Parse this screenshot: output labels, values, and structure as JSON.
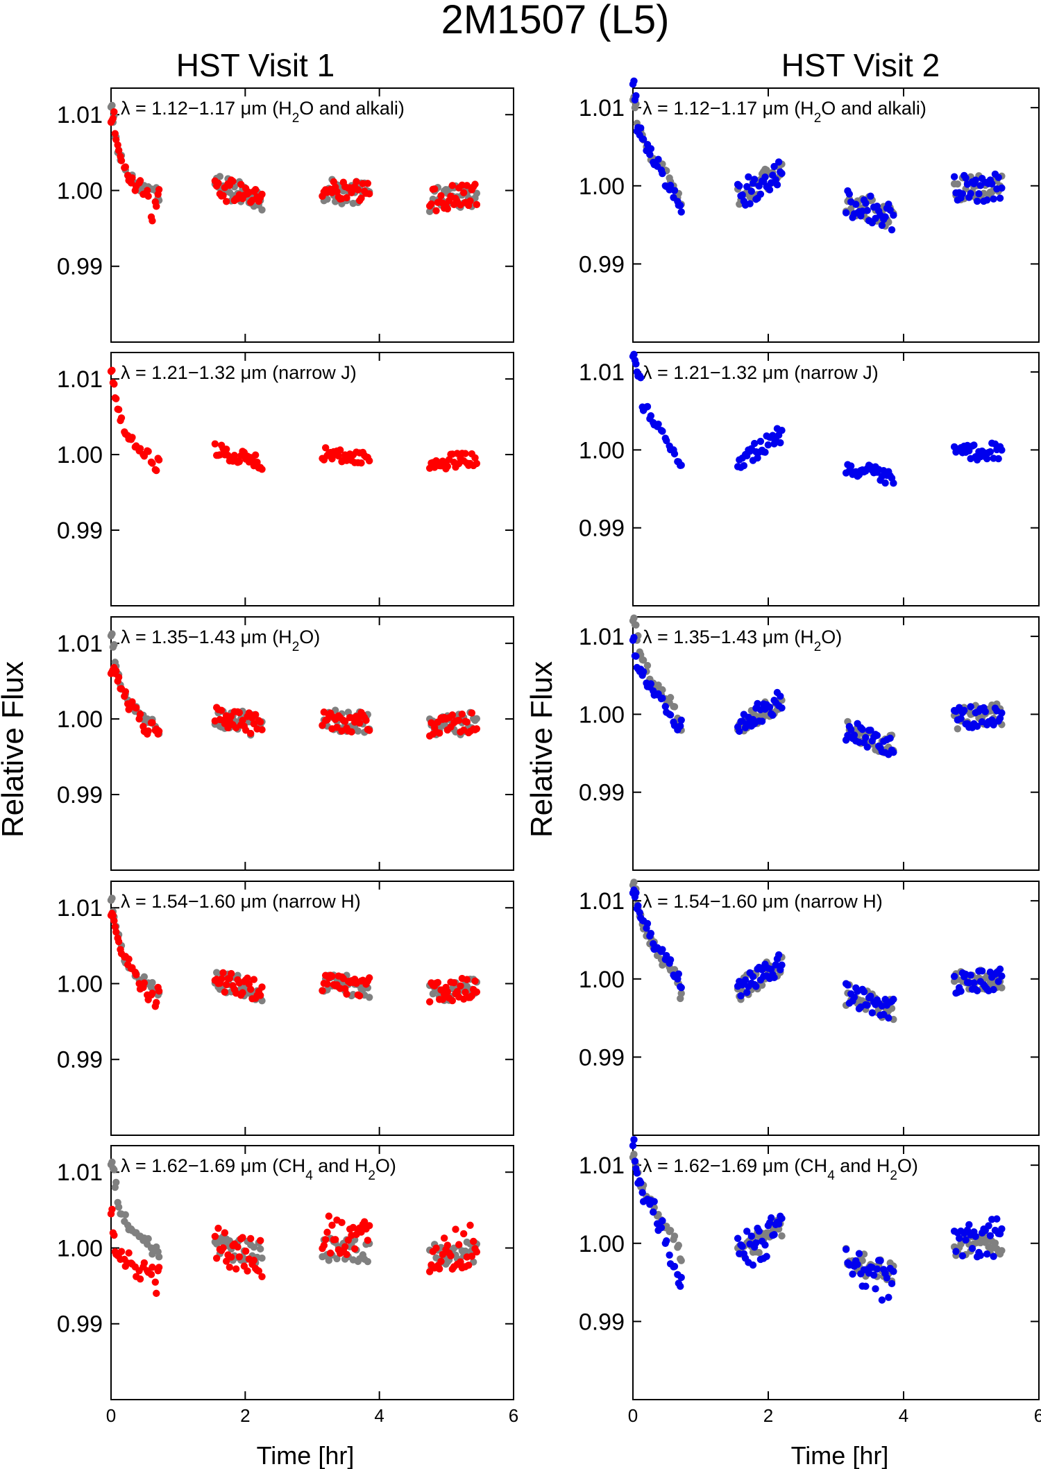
{
  "figure": {
    "title": "2M1507 (L5)",
    "column_titles": [
      "HST Visit 1",
      "HST Visit 2"
    ],
    "ylabel": "Relative Flux",
    "xlabel": "Time [hr]",
    "colors": {
      "reference": "#808080",
      "visit1": "#ff0000",
      "visit2": "#0000ee"
    }
  },
  "chart_data": [
    {
      "type": "scatter",
      "column": "HST Visit 1",
      "row": 1,
      "label": {
        "pre": "λ = 1.12−1.17 μm (H",
        "sub": "2",
        "post": "O and alkali)"
      },
      "xlim": [
        0,
        6
      ],
      "ylim": [
        0.98,
        1.0135
      ],
      "xticks": [
        0,
        2,
        4,
        6
      ],
      "yticks": [
        0.99,
        1.0,
        1.01
      ],
      "ytick_labels": [
        "0.99",
        "1.00",
        "1.01"
      ],
      "series": [
        {
          "role": "reference",
          "color": "#808080",
          "variability": 1.0,
          "x": [
            0.0,
            0.03,
            0.06,
            0.1,
            0.14,
            0.2,
            0.25,
            0.3,
            0.36,
            0.42,
            0.48,
            0.54,
            0.6,
            0.66,
            0.7
          ],
          "y": [
            1.011,
            1.009,
            1.007,
            1.005,
            1.004,
            1.003,
            1.002,
            1.0015,
            1.001,
            1.0008,
            1.0006,
            1.0004,
            1.0002,
            1.0,
            0.999
          ]
        },
        {
          "role": "observed",
          "color": "#ff0000",
          "variability": 1.0,
          "x": [
            0.0,
            0.03,
            0.06,
            0.1,
            0.14,
            0.2,
            0.25,
            0.3,
            0.36,
            0.42,
            0.48,
            0.54,
            0.6,
            0.66,
            0.7
          ],
          "y": [
            1.009,
            1.0095,
            1.0075,
            1.006,
            1.0045,
            1.003,
            1.002,
            1.001,
            1.0,
            1.001,
            0.9995,
            1.0,
            0.9965,
            0.9985,
            0.9995
          ]
        }
      ]
    },
    {
      "type": "scatter",
      "column": "HST Visit 1",
      "row": 2,
      "label": {
        "pre": "λ = 1.21−1.32 μm (narrow J)",
        "sub": "",
        "post": ""
      },
      "xlim": [
        0,
        6
      ],
      "ylim": [
        0.98,
        1.0135
      ],
      "xticks": [
        0,
        2,
        4,
        6
      ],
      "yticks": [
        0.99,
        1.0,
        1.01
      ],
      "ytick_labels": [
        "0.99",
        "1.00",
        "1.01"
      ],
      "series": [
        {
          "role": "reference",
          "color": "#808080",
          "variability": 0.0,
          "x": [],
          "y": []
        },
        {
          "role": "observed",
          "color": "#ff0000",
          "variability": 0.35,
          "x": [
            0.0,
            0.03,
            0.06,
            0.1,
            0.14,
            0.2,
            0.25,
            0.3,
            0.36,
            0.42,
            0.48,
            0.54,
            0.6,
            0.66,
            0.7
          ],
          "y": [
            1.011,
            1.0095,
            1.0075,
            1.006,
            1.0045,
            1.003,
            1.0025,
            1.002,
            1.001,
            1.0005,
            1.0,
            1.0005,
            0.999,
            0.998,
            0.9995
          ]
        }
      ]
    },
    {
      "type": "scatter",
      "column": "HST Visit 1",
      "row": 3,
      "label": {
        "pre": "λ = 1.35−1.43 μm (H",
        "sub": "2",
        "post": "O)"
      },
      "xlim": [
        0,
        6
      ],
      "ylim": [
        0.98,
        1.0135
      ],
      "xticks": [
        0,
        2,
        4,
        6
      ],
      "yticks": [
        0.99,
        1.0,
        1.01
      ],
      "ytick_labels": [
        "0.99",
        "1.00",
        "1.01"
      ],
      "series": [
        {
          "role": "reference",
          "color": "#808080",
          "variability": 0.9,
          "x": [
            0.0,
            0.03,
            0.06,
            0.1,
            0.14,
            0.2,
            0.25,
            0.3,
            0.36,
            0.42,
            0.48,
            0.54,
            0.6,
            0.66,
            0.7
          ],
          "y": [
            1.011,
            1.0095,
            1.0075,
            1.006,
            1.0045,
            1.003,
            1.0025,
            1.002,
            1.001,
            1.0008,
            1.0005,
            1.0,
            0.9995,
            0.999,
            0.9985
          ]
        },
        {
          "role": "observed",
          "color": "#ff0000",
          "variability": 0.8,
          "x": [
            0.0,
            0.03,
            0.06,
            0.1,
            0.14,
            0.2,
            0.25,
            0.3,
            0.36,
            0.42,
            0.48,
            0.54,
            0.6,
            0.66,
            0.7
          ],
          "y": [
            1.006,
            1.0065,
            1.006,
            1.005,
            1.004,
            1.003,
            1.002,
            1.002,
            1.0015,
            1.0,
            0.999,
            0.998,
            0.9995,
            0.9985,
            0.998
          ]
        }
      ]
    },
    {
      "type": "scatter",
      "column": "HST Visit 1",
      "row": 4,
      "label": {
        "pre": "λ = 1.54−1.60 μm (narrow H)",
        "sub": "",
        "post": ""
      },
      "xlim": [
        0,
        6
      ],
      "ylim": [
        0.98,
        1.0135
      ],
      "xticks": [
        0,
        2,
        4,
        6
      ],
      "yticks": [
        0.99,
        1.0,
        1.01
      ],
      "ytick_labels": [
        "0.99",
        "1.00",
        "1.01"
      ],
      "series": [
        {
          "role": "reference",
          "color": "#808080",
          "variability": 0.8,
          "x": [
            0.0,
            0.03,
            0.06,
            0.1,
            0.14,
            0.2,
            0.25,
            0.3,
            0.36,
            0.42,
            0.48,
            0.54,
            0.6,
            0.66,
            0.7
          ],
          "y": [
            1.011,
            1.0095,
            1.0075,
            1.006,
            1.0045,
            1.003,
            1.0025,
            1.002,
            1.001,
            1.0005,
            1.0003,
            1.0,
            0.9995,
            0.999,
            0.9985
          ]
        },
        {
          "role": "observed",
          "color": "#ff0000",
          "variability": 0.8,
          "x": [
            0.0,
            0.03,
            0.06,
            0.1,
            0.14,
            0.2,
            0.25,
            0.3,
            0.36,
            0.42,
            0.48,
            0.54,
            0.6,
            0.66,
            0.7
          ],
          "y": [
            1.009,
            1.009,
            1.0075,
            1.006,
            1.0045,
            1.0035,
            1.0025,
            1.002,
            1.0015,
            1.0,
            0.9995,
            0.9985,
            0.9985,
            0.997,
            0.9995
          ]
        }
      ]
    },
    {
      "type": "scatter",
      "column": "HST Visit 1",
      "row": 5,
      "label": {
        "pre": "λ = 1.62−1.69 μm (CH",
        "sub": "4",
        "post": " and H",
        "sub2": "2",
        "post2": "O)"
      },
      "xlim": [
        0,
        6
      ],
      "ylim": [
        0.98,
        1.0135
      ],
      "xticks": [
        0,
        2,
        4,
        6
      ],
      "yticks": [
        0.99,
        1.0,
        1.01
      ],
      "ytick_labels": [
        "0.99",
        "1.00",
        "1.01"
      ],
      "series": [
        {
          "role": "reference",
          "color": "#808080",
          "variability": 1.0,
          "x": [
            0.0,
            0.03,
            0.06,
            0.1,
            0.14,
            0.2,
            0.25,
            0.3,
            0.36,
            0.42,
            0.48,
            0.54,
            0.6,
            0.66,
            0.7
          ],
          "y": [
            1.011,
            1.0105,
            1.008,
            1.006,
            1.0045,
            1.0035,
            1.003,
            1.0025,
            1.002,
            1.0015,
            1.001,
            1.0005,
            1.0,
            1.0,
            0.9995
          ]
        },
        {
          "role": "observed",
          "color": "#ff0000",
          "variability": 2.2,
          "x": [
            0.0,
            0.03,
            0.06,
            0.1,
            0.14,
            0.2,
            0.25,
            0.3,
            0.36,
            0.42,
            0.48,
            0.54,
            0.6,
            0.66,
            0.7
          ],
          "y": [
            1.0045,
            1.002,
            0.9995,
            0.999,
            0.9985,
            0.9985,
            0.998,
            0.998,
            0.9975,
            0.997,
            0.9975,
            0.997,
            0.9965,
            0.9955,
            0.997
          ]
        }
      ]
    },
    {
      "type": "scatter",
      "column": "HST Visit 2",
      "row": 1,
      "label": {
        "pre": "λ = 1.12−1.17 μm (H",
        "sub": "2",
        "post": "O and alkali)"
      },
      "xlim": [
        0,
        6
      ],
      "ylim": [
        0.98,
        1.0125
      ],
      "xticks": [
        0,
        2,
        4,
        6
      ],
      "yticks": [
        0.99,
        1.0,
        1.01
      ],
      "ytick_labels": [
        "0.99",
        "1.00",
        "1.01"
      ],
      "series": [
        {
          "role": "reference",
          "color": "#808080",
          "variability": 1.0,
          "x": [
            0.0,
            0.03,
            0.06,
            0.1,
            0.14,
            0.2,
            0.25,
            0.3,
            0.36,
            0.42,
            0.48,
            0.54,
            0.6,
            0.66,
            0.7
          ],
          "y": [
            1.011,
            1.01,
            1.008,
            1.007,
            1.0065,
            1.005,
            1.004,
            1.0035,
            1.003,
            1.0025,
            1.002,
            1.001,
            1.0,
            0.9985,
            0.9975
          ]
        },
        {
          "role": "observed",
          "color": "#0000ee",
          "variability": 1.2,
          "x": [
            0.0,
            0.03,
            0.06,
            0.1,
            0.14,
            0.2,
            0.25,
            0.3,
            0.36,
            0.42,
            0.48,
            0.54,
            0.6,
            0.66,
            0.7
          ],
          "y": [
            1.013,
            1.011,
            1.007,
            1.0065,
            1.006,
            1.0045,
            1.004,
            1.003,
            1.0025,
            1.002,
            1.0,
            0.9995,
            0.9985,
            0.998,
            0.9975
          ]
        }
      ]
    },
    {
      "type": "scatter",
      "column": "HST Visit 2",
      "row": 2,
      "label": {
        "pre": "λ = 1.21−1.32 μm (narrow J)",
        "sub": "",
        "post": ""
      },
      "xlim": [
        0,
        6
      ],
      "ylim": [
        0.98,
        1.0125
      ],
      "xticks": [
        0,
        2,
        4,
        6
      ],
      "yticks": [
        0.99,
        1.0,
        1.01
      ],
      "ytick_labels": [
        "0.99",
        "1.00",
        "1.01"
      ],
      "series": [
        {
          "role": "reference",
          "color": "#808080",
          "variability": 0.0,
          "x": [],
          "y": []
        },
        {
          "role": "observed",
          "color": "#0000ee",
          "variability": 0.5,
          "x": [
            0.0,
            0.03,
            0.06,
            0.1,
            0.14,
            0.2,
            0.25,
            0.3,
            0.36,
            0.42,
            0.48,
            0.54,
            0.6,
            0.66,
            0.7
          ],
          "y": [
            1.012,
            1.0115,
            1.01,
            1.0095,
            1.0055,
            1.0055,
            1.004,
            1.0035,
            1.003,
            1.0025,
            1.0015,
            1.0005,
            1.0,
            0.9985,
            0.998
          ]
        }
      ]
    },
    {
      "type": "scatter",
      "column": "HST Visit 2",
      "row": 3,
      "label": {
        "pre": "λ = 1.35−1.43 μm (H",
        "sub": "2",
        "post": "O)"
      },
      "xlim": [
        0,
        6
      ],
      "ylim": [
        0.98,
        1.0125
      ],
      "xticks": [
        0,
        2,
        4,
        6
      ],
      "yticks": [
        0.99,
        1.0,
        1.01
      ],
      "ytick_labels": [
        "0.99",
        "1.00",
        "1.01"
      ],
      "series": [
        {
          "role": "reference",
          "color": "#808080",
          "variability": 0.8,
          "x": [
            0.0,
            0.03,
            0.06,
            0.1,
            0.14,
            0.2,
            0.25,
            0.3,
            0.36,
            0.42,
            0.48,
            0.54,
            0.6,
            0.66,
            0.7
          ],
          "y": [
            1.012,
            1.0115,
            1.0095,
            1.008,
            1.007,
            1.0055,
            1.0045,
            1.004,
            1.003,
            1.0025,
            1.002,
            1.0015,
            1.001,
            0.9995,
            0.998
          ]
        },
        {
          "role": "observed",
          "color": "#0000ee",
          "variability": 0.8,
          "x": [
            0.0,
            0.03,
            0.06,
            0.1,
            0.14,
            0.2,
            0.25,
            0.3,
            0.36,
            0.42,
            0.48,
            0.54,
            0.6,
            0.66,
            0.7
          ],
          "y": [
            1.0095,
            1.0075,
            1.006,
            1.0055,
            1.005,
            1.004,
            1.0035,
            1.003,
            1.0025,
            1.002,
            1.001,
            1.0,
            0.999,
            0.998,
            0.9985
          ]
        }
      ]
    },
    {
      "type": "scatter",
      "column": "HST Visit 2",
      "row": 4,
      "label": {
        "pre": "λ = 1.54−1.60 μm (narrow H)",
        "sub": "",
        "post": ""
      },
      "xlim": [
        0,
        6
      ],
      "ylim": [
        0.98,
        1.0125
      ],
      "xticks": [
        0,
        2,
        4,
        6
      ],
      "yticks": [
        0.99,
        1.0,
        1.01
      ],
      "ytick_labels": [
        "0.99",
        "1.00",
        "1.01"
      ],
      "series": [
        {
          "role": "reference",
          "color": "#808080",
          "variability": 0.8,
          "x": [
            0.0,
            0.03,
            0.06,
            0.1,
            0.14,
            0.2,
            0.25,
            0.3,
            0.36,
            0.42,
            0.48,
            0.54,
            0.6,
            0.66,
            0.7
          ],
          "y": [
            1.012,
            1.011,
            1.0095,
            1.008,
            1.007,
            1.0055,
            1.0045,
            1.004,
            1.003,
            1.0025,
            1.002,
            1.0015,
            1.001,
            0.9995,
            0.9975
          ]
        },
        {
          "role": "observed",
          "color": "#0000ee",
          "variability": 0.8,
          "x": [
            0.0,
            0.03,
            0.06,
            0.1,
            0.14,
            0.2,
            0.25,
            0.3,
            0.36,
            0.42,
            0.48,
            0.54,
            0.6,
            0.66,
            0.7
          ],
          "y": [
            1.011,
            1.0105,
            1.009,
            1.0085,
            1.0075,
            1.0065,
            1.0055,
            1.0045,
            1.004,
            1.0035,
            1.0025,
            1.002,
            1.0005,
            1.0,
            0.999
          ]
        }
      ]
    },
    {
      "type": "scatter",
      "column": "HST Visit 2",
      "row": 5,
      "label": {
        "pre": "λ = 1.62−1.69 μm (CH",
        "sub": "4",
        "post": " and H",
        "sub2": "2",
        "post2": "O)"
      },
      "xlim": [
        0,
        6
      ],
      "ylim": [
        0.98,
        1.0125
      ],
      "xticks": [
        0,
        2,
        4,
        6
      ],
      "yticks": [
        0.99,
        1.0,
        1.01
      ],
      "ytick_labels": [
        "0.99",
        "1.00",
        "1.01"
      ],
      "series": [
        {
          "role": "reference",
          "color": "#808080",
          "variability": 0.8,
          "x": [
            0.0,
            0.03,
            0.06,
            0.1,
            0.14,
            0.2,
            0.25,
            0.3,
            0.36,
            0.42,
            0.48,
            0.54,
            0.6,
            0.66,
            0.7
          ],
          "y": [
            1.011,
            1.0105,
            1.009,
            1.008,
            1.007,
            1.006,
            1.005,
            1.004,
            1.0035,
            1.003,
            1.002,
            1.0015,
            1.0005,
            0.9995,
            0.998
          ]
        },
        {
          "role": "observed",
          "color": "#0000ee",
          "variability": 2.0,
          "x": [
            0.0,
            0.03,
            0.06,
            0.1,
            0.14,
            0.2,
            0.25,
            0.3,
            0.36,
            0.42,
            0.48,
            0.54,
            0.6,
            0.66,
            0.7
          ],
          "y": [
            1.0125,
            1.0105,
            1.009,
            1.008,
            1.0065,
            1.0055,
            1.005,
            1.004,
            1.0025,
            1.002,
            1.0,
            0.9985,
            0.997,
            0.996,
            0.9945
          ]
        }
      ]
    }
  ]
}
